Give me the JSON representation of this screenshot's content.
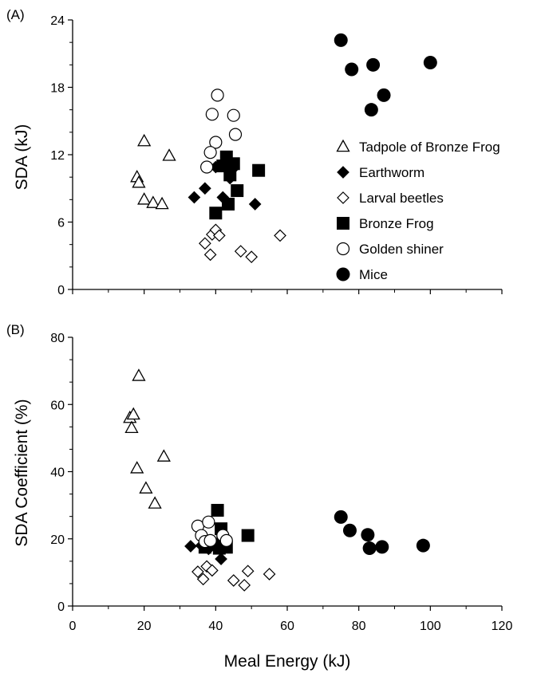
{
  "chart_data": [
    {
      "type": "scatter",
      "panel_label": "(A)",
      "xlabel": "",
      "ylabel": "SDA (kJ)",
      "xlim": [
        0,
        120
      ],
      "ylim": [
        0,
        24
      ],
      "x_ticks": [
        "0",
        "20",
        "40",
        "60",
        "80",
        "100",
        "120"
      ],
      "y_ticks": [
        "0",
        "6",
        "12",
        "18",
        "24"
      ],
      "grid": false,
      "legend": "right",
      "series": [
        {
          "name": "Tadpole of Bronze Frog",
          "marker": "triangle-open",
          "x": [
            18,
            18.5,
            20,
            22.5,
            25,
            20,
            27
          ],
          "y": [
            10,
            9.5,
            8,
            7.7,
            7.6,
            13.2,
            11.9
          ]
        },
        {
          "name": "Earthworm",
          "marker": "diamond-filled",
          "x": [
            34,
            37,
            40,
            42,
            44,
            45,
            51
          ],
          "y": [
            8.2,
            9,
            10.9,
            8.2,
            9.9,
            10.8,
            7.6
          ]
        },
        {
          "name": "Larval beetles",
          "marker": "diamond-open",
          "x": [
            37,
            38.5,
            39,
            40,
            41,
            47,
            50,
            58
          ],
          "y": [
            4.1,
            3.1,
            4.9,
            5.3,
            4.8,
            3.4,
            2.9,
            4.8
          ]
        },
        {
          "name": "Bronze Frog",
          "marker": "square-filled",
          "x": [
            42,
            43,
            44,
            45,
            46,
            43.5,
            52,
            40
          ],
          "y": [
            11,
            11.8,
            10.2,
            11.2,
            8.8,
            7.6,
            10.6,
            6.8
          ]
        },
        {
          "name": "Golden shiner",
          "marker": "circle-open",
          "x": [
            40.5,
            39,
            45,
            45.5,
            40,
            38.5,
            37.5
          ],
          "y": [
            17.3,
            15.6,
            15.5,
            13.8,
            13.1,
            12.2,
            10.9
          ]
        },
        {
          "name": "Mice",
          "marker": "circle-filled",
          "x": [
            75,
            78,
            84,
            87,
            100,
            83.5
          ],
          "y": [
            22.2,
            19.6,
            20,
            17.3,
            20.2,
            16.0
          ]
        }
      ]
    },
    {
      "type": "scatter",
      "panel_label": "(B)",
      "xlabel": "Meal Energy (kJ)",
      "ylabel": "SDA Coefficient (%)",
      "xlim": [
        0,
        120
      ],
      "ylim": [
        0,
        80
      ],
      "x_ticks": [
        "0",
        "20",
        "40",
        "60",
        "80",
        "100",
        "120"
      ],
      "y_ticks": [
        "0",
        "20",
        "40",
        "60",
        "80"
      ],
      "grid": false,
      "series": [
        {
          "name": "Tadpole of Bronze Frog",
          "marker": "triangle-open",
          "x": [
            16,
            17,
            16.5,
            18.5,
            18,
            20.5,
            23,
            25.5
          ],
          "y": [
            56,
            57,
            53,
            68.5,
            41,
            35,
            30.5,
            44.5
          ]
        },
        {
          "name": "Earthworm",
          "marker": "diamond-filled",
          "x": [
            33,
            36,
            38,
            40,
            41.5,
            43
          ],
          "y": [
            17.8,
            18,
            17,
            17.5,
            14,
            19
          ]
        },
        {
          "name": "Larval beetles",
          "marker": "diamond-open",
          "x": [
            35,
            36.5,
            37.5,
            39,
            45,
            48,
            49,
            55
          ],
          "y": [
            10.2,
            8,
            11.8,
            10.6,
            7.6,
            6.2,
            10.4,
            9.5
          ]
        },
        {
          "name": "Bronze Frog",
          "marker": "square-filled",
          "x": [
            37,
            40.5,
            41.5,
            42,
            43,
            49,
            41
          ],
          "y": [
            17.5,
            28.5,
            23,
            19,
            17.5,
            21,
            17.2
          ]
        },
        {
          "name": "Golden shiner",
          "marker": "circle-open",
          "x": [
            35,
            38,
            36,
            37,
            38.5,
            42,
            43
          ],
          "y": [
            23.8,
            25,
            21,
            19.2,
            19.5,
            21,
            19.5
          ]
        },
        {
          "name": "Mice",
          "marker": "circle-filled",
          "x": [
            75,
            77.5,
            82.5,
            83,
            86.5,
            98
          ],
          "y": [
            26.5,
            22.5,
            21.2,
            17.2,
            17.6,
            18
          ]
        }
      ]
    }
  ]
}
